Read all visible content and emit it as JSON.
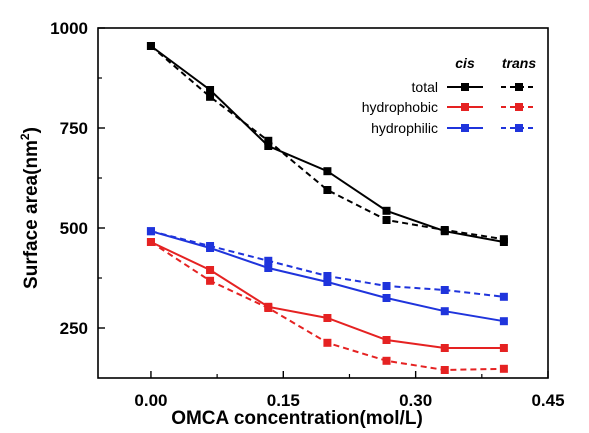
{
  "chart_data": {
    "type": "line",
    "title": "",
    "xlabel": "OMCA concentration(mol/L)",
    "ylabel": "Surface area(nm",
    "ylabel_sup": "2",
    "ylabel_end": ")",
    "xlim": [
      -0.06,
      0.45
    ],
    "ylim": [
      125,
      1000
    ],
    "xticks": [
      0.0,
      0.15,
      0.3,
      0.45
    ],
    "xtick_labels": [
      "0.00",
      "0.15",
      "0.30",
      "0.45"
    ],
    "yticks": [
      250,
      500,
      750,
      1000
    ],
    "ytick_labels": [
      "250",
      "500",
      "750",
      "1000"
    ],
    "x": [
      0.0,
      0.067,
      0.133,
      0.2,
      0.267,
      0.333,
      0.4
    ],
    "legend": {
      "placement": "top-right",
      "headers": [
        "cis",
        "trans"
      ],
      "rows": [
        "total",
        "hydrophobic",
        "hydrophilic"
      ]
    },
    "series": [
      {
        "name": "total",
        "variant": "cis",
        "color": "#000000",
        "dash": "solid",
        "values": [
          955,
          845,
          705,
          642,
          543,
          492,
          465
        ]
      },
      {
        "name": "total",
        "variant": "trans",
        "color": "#000000",
        "dash": "dashed",
        "values": [
          955,
          828,
          718,
          595,
          520,
          495,
          472
        ]
      },
      {
        "name": "hydrophobic",
        "variant": "cis",
        "color": "#e52222",
        "dash": "solid",
        "values": [
          465,
          395,
          303,
          275,
          220,
          200,
          200
        ]
      },
      {
        "name": "hydrophobic",
        "variant": "trans",
        "color": "#e52222",
        "dash": "dashed",
        "values": [
          465,
          368,
          300,
          213,
          168,
          145,
          148
        ]
      },
      {
        "name": "hydrophilic",
        "variant": "cis",
        "color": "#1f34dc",
        "dash": "solid",
        "values": [
          492,
          450,
          400,
          365,
          325,
          292,
          267
        ]
      },
      {
        "name": "hydrophilic",
        "variant": "trans",
        "color": "#1f34dc",
        "dash": "dashed",
        "values": [
          492,
          455,
          418,
          380,
          355,
          345,
          328
        ]
      }
    ]
  }
}
